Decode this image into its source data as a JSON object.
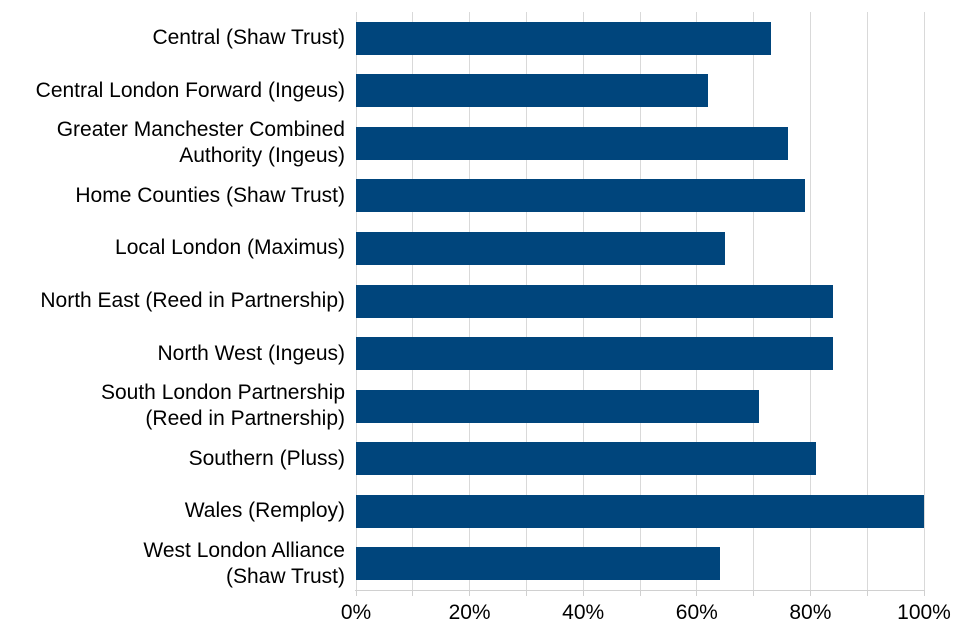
{
  "chart_data": {
    "type": "bar",
    "orientation": "horizontal",
    "title": "",
    "xlabel": "",
    "ylabel": "",
    "categories": [
      "Central (Shaw Trust)",
      "Central London Forward (Ingeus)",
      "Greater Manchester Combined Authority (Ingeus)",
      "Home Counties (Shaw Trust)",
      "Local London (Maximus)",
      "North East (Reed in Partnership)",
      "North West (Ingeus)",
      "South London Partnership (Reed in Partnership)",
      "Southern (Pluss)",
      "Wales (Remploy)",
      "West London Alliance (Shaw Trust)"
    ],
    "category_lines": [
      [
        "Central (Shaw Trust)"
      ],
      [
        "Central London Forward (Ingeus)"
      ],
      [
        "Greater Manchester Combined",
        "Authority (Ingeus)"
      ],
      [
        "Home Counties (Shaw Trust)"
      ],
      [
        "Local London (Maximus)"
      ],
      [
        "North East (Reed in Partnership)"
      ],
      [
        "North West (Ingeus)"
      ],
      [
        "South London Partnership",
        "(Reed in Partnership)"
      ],
      [
        "Southern (Pluss)"
      ],
      [
        "Wales (Remploy)"
      ],
      [
        "West London Alliance",
        "(Shaw Trust)"
      ]
    ],
    "values": [
      73,
      62,
      76,
      79,
      65,
      84,
      84,
      71,
      81,
      100,
      64
    ],
    "value_unit": "%",
    "xlim": [
      0,
      100
    ],
    "x_ticks": [
      "0%",
      "20%",
      "40%",
      "60%",
      "80%",
      "100%"
    ],
    "x_tick_values": [
      0,
      20,
      40,
      60,
      80,
      100
    ],
    "gridline_step": 10,
    "grid": true,
    "legend": false,
    "colors": {
      "bar": "#00457c",
      "gridline": "#d9d9d9",
      "axis": "#d0d0d0",
      "text": "#000000",
      "background": "#ffffff"
    }
  }
}
